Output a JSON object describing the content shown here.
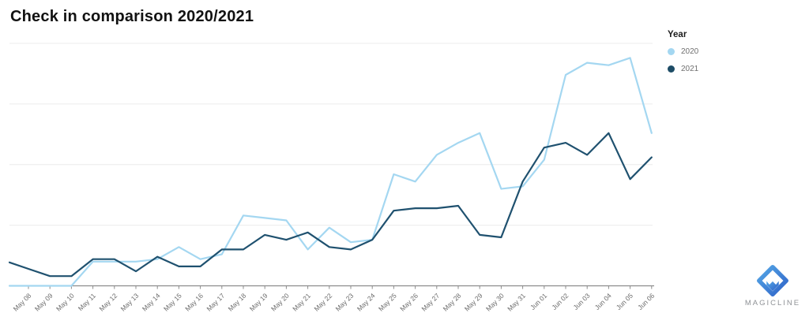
{
  "title": "Check in comparison 2020/2021",
  "legend": {
    "title": "Year",
    "items": [
      {
        "label": "2020",
        "color": "#a4d7f1"
      },
      {
        "label": "2021",
        "color": "#1d4c66"
      }
    ]
  },
  "logo": {
    "text": "MAGICLINE",
    "gradient_start": "#55a7e6",
    "gradient_end": "#2e62c8",
    "text_color": "#8f9296"
  },
  "colors": {
    "series_2020": "#a4d7f1",
    "series_2021": "#1f516f",
    "gridline": "#ececec",
    "axis": "#8c8c8c",
    "tick_label": "#6b6b6b",
    "title_text": "#121212"
  },
  "chart_data": {
    "type": "line",
    "title": "Check in comparison 2020/2021",
    "xlabel": "",
    "ylabel": "",
    "x": [
      "May 08",
      "May 09",
      "May 10",
      "May 11",
      "May 12",
      "May 13",
      "May 14",
      "May 15",
      "May 16",
      "May 17",
      "May 18",
      "May 19",
      "May 20",
      "May 21",
      "May 22",
      "May 23",
      "May 24",
      "May 25",
      "May 26",
      "May 27",
      "May 28",
      "May 29",
      "May 30",
      "May 31",
      "Jun 01",
      "Jun 02",
      "Jun 03",
      "Jun 04",
      "Jun 05",
      "Jun 06"
    ],
    "series": [
      {
        "name": "2020",
        "color": "#a4d7f1",
        "values": [
          0,
          0,
          0,
          10,
          10,
          10,
          11,
          16,
          11,
          13,
          29,
          28,
          27,
          15,
          24,
          18,
          19,
          46,
          43,
          54,
          59,
          63,
          40,
          41,
          52,
          87,
          92,
          91,
          94,
          63
        ]
      },
      {
        "name": "2021",
        "color": "#1f516f",
        "values": [
          7,
          4,
          4,
          11,
          11,
          6,
          12,
          8,
          8,
          15,
          15,
          21,
          19,
          22,
          16,
          15,
          19,
          31,
          32,
          32,
          33,
          21,
          20,
          43,
          57,
          59,
          54,
          63,
          44,
          53
        ]
      }
    ],
    "ylim": [
      0,
      100
    ],
    "y_gridlines": [
      25,
      50,
      75,
      100
    ],
    "y_axis_labels_visible": false,
    "grid": "horizontal",
    "legend_position": "top-right",
    "x_tick_rotation": -45
  }
}
